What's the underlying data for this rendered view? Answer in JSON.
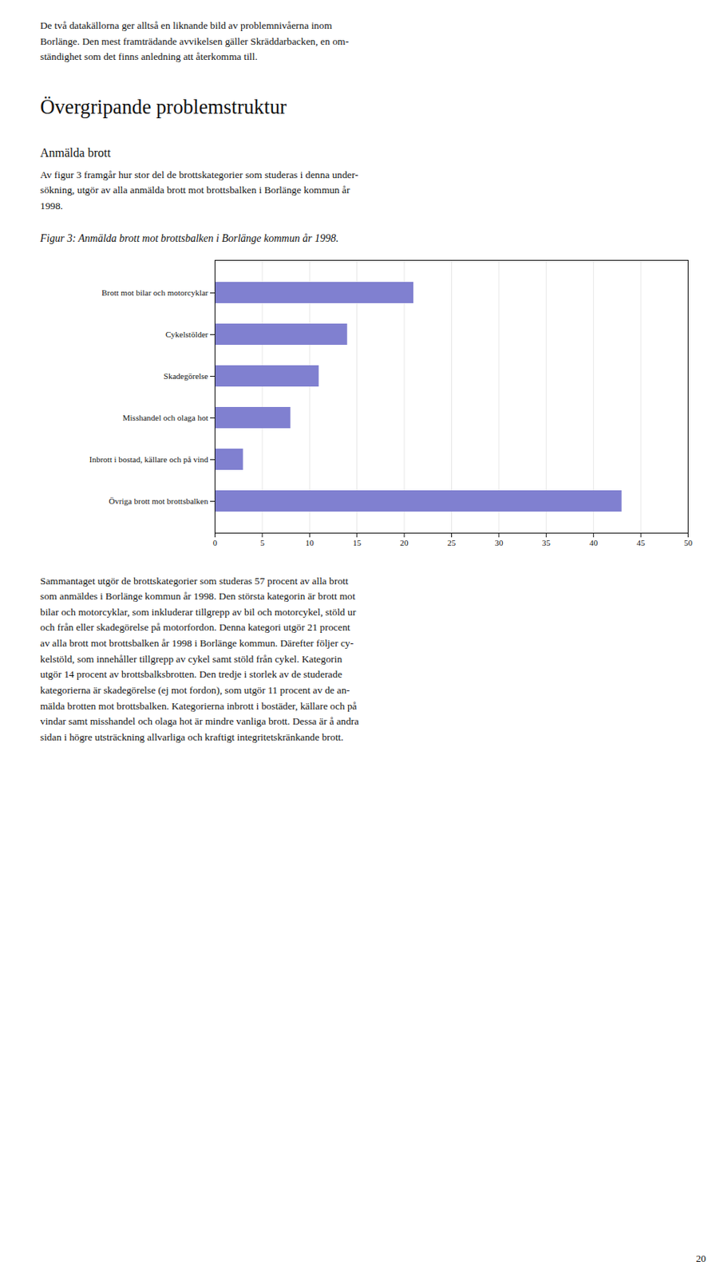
{
  "page": {
    "top_text": [
      "De två datakällorna ger alltså en liknande bild av problemnivåerna inom",
      "Borlänge. Den mest framträdande avvikelsen gäller Skräddarbacken, en om-",
      "ständighet som det finns anledning att återkomma till."
    ],
    "section_title": "Övergripande problemstruktur",
    "subsection_title": "Anmälda brott",
    "body_text": [
      "Av figur 3 framgår hur stor del de brottskategorier som studeras i denna under-",
      "sökning, utgör av alla anmälda brott mot brottsbalken i Borlänge kommun år",
      "1998."
    ],
    "bottom_text": [
      "Sammantaget utgör de brottskategorier som studeras 57 procent av alla brott",
      "som anmäldes i Borlänge kommun år 1998. Den största kategorin är brott mot",
      "bilar och motorcyklar, som inkluderar tillgrepp av bil och motorcykel, stöld ur",
      "och från eller skadegörelse på motorfordon. Denna kategori utgör 21 procent",
      "av alla brott mot brottsbalken år 1998 i Borlänge kommun. Därefter följer cy-",
      "kelstöld, som innehåller tillgrepp av cykel samt stöld från cykel. Kategorin",
      "utgör 14 procent av brottsbalksbrotten. Den tredje i storlek av de studerade",
      "kategorierna är skadegörelse (ej mot fordon), som utgör 11 procent av de an-",
      "mälda brotten mot brottsbalken. Kategorierna inbrott i bostäder, källare och på",
      "vindar samt misshandel och olaga hot är mindre vanliga brott. Dessa är å andra",
      "sidan i högre utsträckning allvarliga och kraftigt integritetskränkande brott."
    ],
    "page_number": "20"
  },
  "chart_data": {
    "type": "bar",
    "orientation": "horizontal",
    "title": "Figur 3: Anmälda brott mot brottsbalken i Borlänge kommun år 1998.",
    "categories": [
      "Brott mot bilar och motorcyklar",
      "Cykelstölder",
      "Skadegörelse",
      "Misshandel och olaga hot",
      "Inbrott i bostad, källare och på vind",
      "Övriga brott mot brottsbalken"
    ],
    "values": [
      21,
      14,
      11,
      8,
      3,
      43
    ],
    "color": "#8080d0",
    "xlim": [
      0,
      50
    ],
    "xticks": [
      0,
      5,
      10,
      15,
      20,
      25,
      30,
      35,
      40,
      45,
      50
    ],
    "grid": true
  }
}
